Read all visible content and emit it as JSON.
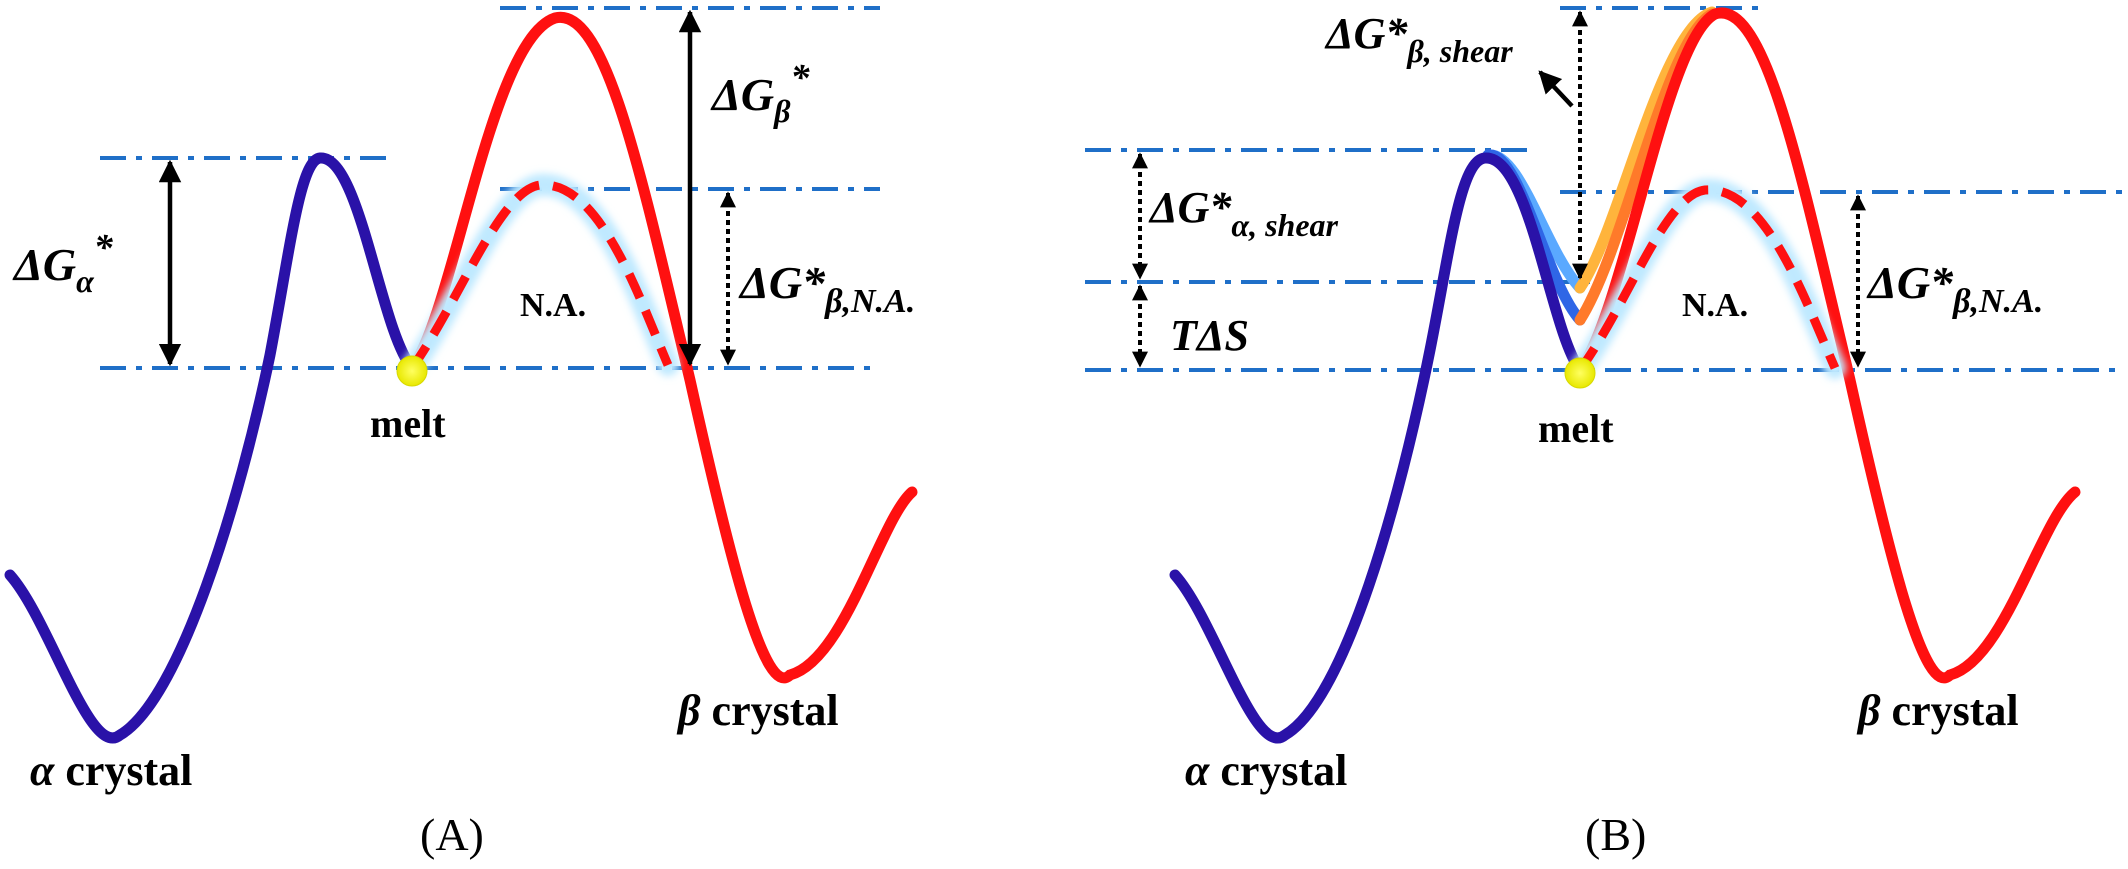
{
  "colors": {
    "alpha_curve": "#2a12a8",
    "beta_curve": "#ff1010",
    "guide_line": "#1f6fc8",
    "melt_dot": "#f4f400",
    "glow": "#bfe9ff",
    "shear_blue_1": "#5aa9ff",
    "shear_blue_2": "#2f66e6",
    "shear_orange_1": "#ffb43c",
    "shear_orange_2": "#ff7a2a"
  },
  "panelA": {
    "caption": "(A)",
    "delta_g_alpha": {
      "main": "ΔG",
      "sub": "α",
      "sup": "*"
    },
    "delta_g_beta": {
      "main": "ΔG",
      "sub": "β",
      "sup": "*"
    },
    "delta_g_beta_na": {
      "main": "ΔG*",
      "sub": "β,N.A."
    },
    "na_label": "N.A.",
    "melt_label": "melt",
    "alpha_label": {
      "greek": "α",
      "word": " crystal"
    },
    "beta_label": {
      "greek": "β",
      "word": " crystal"
    }
  },
  "panelB": {
    "caption": "(B)",
    "delta_g_beta_shear": {
      "main": "ΔG*",
      "sub": "β, shear"
    },
    "delta_g_alpha_shear": {
      "main": "ΔG*",
      "sub": "α, shear"
    },
    "t_delta_s": "TΔS",
    "delta_g_beta_na": {
      "main": "ΔG*",
      "sub": "β,N.A."
    },
    "na_label": "N.A.",
    "melt_label": "melt",
    "alpha_label": {
      "greek": "α",
      "word": " crystal"
    },
    "beta_label": {
      "greek": "β",
      "word": " crystal"
    }
  }
}
